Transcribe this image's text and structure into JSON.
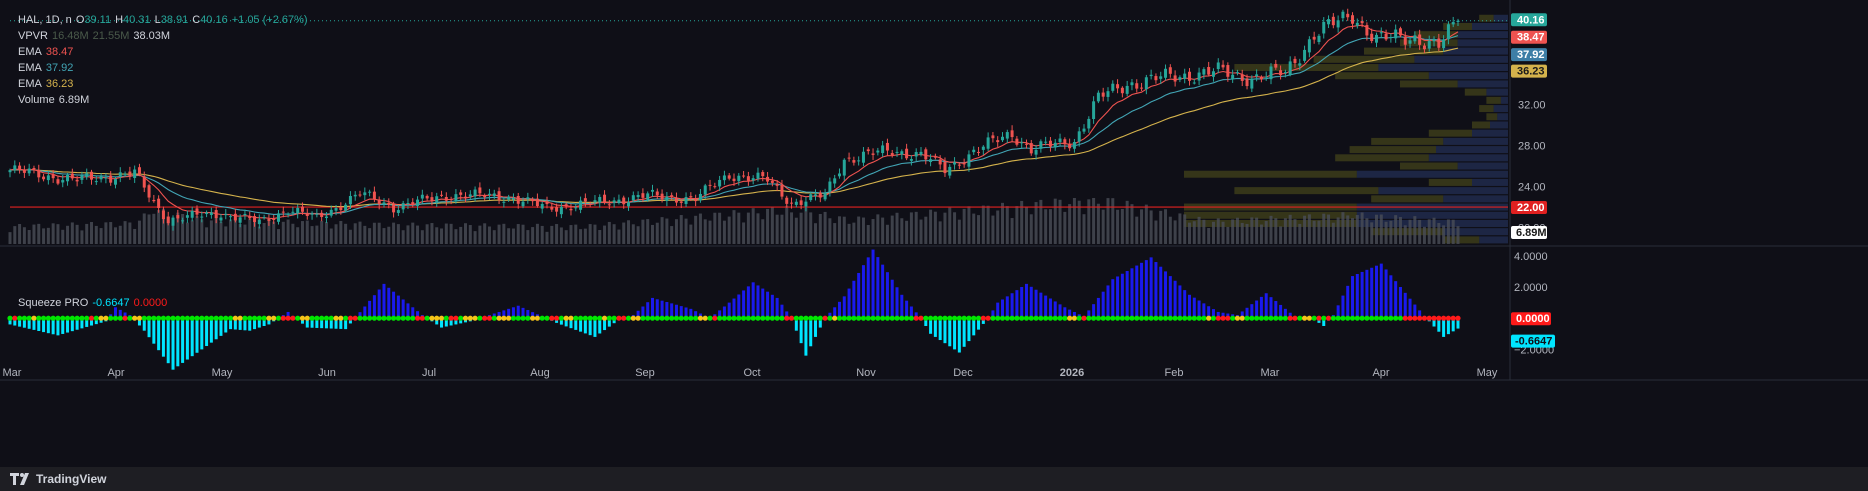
{
  "header": {
    "symbol": "HAL, 1D, n",
    "o_label": "O",
    "o": "39.11",
    "h_label": "H",
    "h": "40.31",
    "l_label": "L",
    "l": "38.91",
    "c_label": "C",
    "c": "40.16",
    "change": "+1.05 (+2.67%)"
  },
  "indicators": {
    "vpvr_label": "VPVR",
    "vpvr_a": "16.48M",
    "vpvr_b": "21.55M",
    "vpvr_c": "38.03M",
    "ema1_label": "EMA",
    "ema1": "38.47",
    "ema2_label": "EMA",
    "ema2": "37.92",
    "ema3_label": "EMA",
    "ema3": "36.23",
    "volume_label": "Volume",
    "volume": "6.89M"
  },
  "squeeze": {
    "label": "Squeeze PRO",
    "value": "-0.6647",
    "zero": "0.0000"
  },
  "footer": {
    "brand": "TradingView"
  },
  "colors": {
    "up": "#26a69a",
    "down": "#ef5350",
    "ema1": "#ef5350",
    "ema2": "#42a5b5",
    "ema3": "#d4b24c",
    "hline": "#e02020",
    "squeeze_pos": "#1a1aee",
    "squeeze_neg": "#00e5ff",
    "dot_on": "#00e600",
    "dot_off": "#ff1a1a",
    "dot_mid": "#f5c518"
  },
  "chart_data": [
    {
      "type": "candlestick",
      "title": "HAL, 1D",
      "price_ticks": [
        "32.00",
        "28.00",
        "24.00",
        "20.00"
      ],
      "price_badges": [
        "40.16",
        "38.47",
        "37.92",
        "36.23",
        "22.00"
      ],
      "volume_badge": "6.89M",
      "x_ticks": [
        "Mar",
        "Apr",
        "May",
        "Jun",
        "Jul",
        "Aug",
        "Sep",
        "Oct",
        "Nov",
        "Dec",
        "2026",
        "Feb",
        "Mar",
        "Apr",
        "May"
      ],
      "horizontal_line": 22.0,
      "ylim": [
        18.4,
        41.4
      ],
      "last_close": 40.16,
      "ema": [
        38.47,
        37.92,
        36.23
      ],
      "close_anchors": [
        {
          "i": 0,
          "v": 25.6
        },
        {
          "i": 14,
          "v": 24.6
        },
        {
          "i": 26,
          "v": 25.3
        },
        {
          "i": 30,
          "v": 22.4
        },
        {
          "i": 33,
          "v": 20.8
        },
        {
          "i": 44,
          "v": 21.4
        },
        {
          "i": 52,
          "v": 20.5
        },
        {
          "i": 58,
          "v": 21.8
        },
        {
          "i": 64,
          "v": 20.9
        },
        {
          "i": 73,
          "v": 23.3
        },
        {
          "i": 80,
          "v": 22.0
        },
        {
          "i": 92,
          "v": 23.2
        },
        {
          "i": 104,
          "v": 23.0
        },
        {
          "i": 112,
          "v": 21.9
        },
        {
          "i": 122,
          "v": 22.4
        },
        {
          "i": 133,
          "v": 23.1
        },
        {
          "i": 143,
          "v": 22.8
        },
        {
          "i": 150,
          "v": 25.2
        },
        {
          "i": 158,
          "v": 24.6
        },
        {
          "i": 163,
          "v": 22.4
        },
        {
          "i": 170,
          "v": 23.1
        },
        {
          "i": 174,
          "v": 26.7
        },
        {
          "i": 184,
          "v": 27.5
        },
        {
          "i": 190,
          "v": 27.1
        },
        {
          "i": 195,
          "v": 25.6
        },
        {
          "i": 201,
          "v": 27.4
        },
        {
          "i": 209,
          "v": 29.2
        },
        {
          "i": 213,
          "v": 27.6
        },
        {
          "i": 222,
          "v": 28.5
        },
        {
          "i": 227,
          "v": 32.6
        },
        {
          "i": 233,
          "v": 34.0
        },
        {
          "i": 242,
          "v": 34.7
        },
        {
          "i": 252,
          "v": 35.2
        },
        {
          "i": 259,
          "v": 34.6
        },
        {
          "i": 266,
          "v": 35.1
        },
        {
          "i": 272,
          "v": 38.8
        },
        {
          "i": 280,
          "v": 40.8
        },
        {
          "i": 285,
          "v": 38.3
        },
        {
          "i": 293,
          "v": 38.6
        },
        {
          "i": 298,
          "v": 37.6
        },
        {
          "i": 302,
          "v": 40.16
        }
      ],
      "volume_anchors": [
        {
          "i": 0,
          "v": 5.5
        },
        {
          "i": 26,
          "v": 6.5
        },
        {
          "i": 30,
          "v": 10.5
        },
        {
          "i": 40,
          "v": 7.5
        },
        {
          "i": 80,
          "v": 6.0
        },
        {
          "i": 120,
          "v": 5.5
        },
        {
          "i": 163,
          "v": 11.0
        },
        {
          "i": 175,
          "v": 7.5
        },
        {
          "i": 227,
          "v": 14.0
        },
        {
          "i": 250,
          "v": 7.0
        },
        {
          "i": 280,
          "v": 9.0
        },
        {
          "i": 302,
          "v": 6.89
        }
      ],
      "volume_max": 16,
      "volume_profile_levels": [
        {
          "price": 40.4,
          "up": 2.0,
          "down": 2.0
        },
        {
          "price": 39.6,
          "up": 4.0,
          "down": 5.0
        },
        {
          "price": 38.8,
          "up": 6.0,
          "down": 7.0
        },
        {
          "price": 38.0,
          "up": 8.0,
          "down": 7.0
        },
        {
          "price": 37.2,
          "up": 11.0,
          "down": 9.0
        },
        {
          "price": 36.4,
          "up": 14.0,
          "down": 13.0
        },
        {
          "price": 35.6,
          "up": 20.0,
          "down": 18.0
        },
        {
          "price": 34.8,
          "up": 13.0,
          "down": 11.0
        },
        {
          "price": 34.0,
          "up": 8.0,
          "down": 7.0
        },
        {
          "price": 33.2,
          "up": 3.0,
          "down": 3.0
        },
        {
          "price": 32.4,
          "up": 2.0,
          "down": 1.0
        },
        {
          "price": 31.6,
          "up": 2.0,
          "down": 2.0
        },
        {
          "price": 30.8,
          "up": 1.5,
          "down": 1.5
        },
        {
          "price": 30.0,
          "up": 2.5,
          "down": 2.5
        },
        {
          "price": 29.2,
          "up": 6.0,
          "down": 5.0
        },
        {
          "price": 28.4,
          "up": 10.0,
          "down": 9.0
        },
        {
          "price": 27.6,
          "up": 12.0,
          "down": 10.0
        },
        {
          "price": 26.8,
          "up": 13.0,
          "down": 11.0
        },
        {
          "price": 26.0,
          "up": 8.0,
          "down": 7.0
        },
        {
          "price": 25.2,
          "up": 24.0,
          "down": 21.0
        },
        {
          "price": 24.4,
          "up": 6.0,
          "down": 5.0
        },
        {
          "price": 23.6,
          "up": 20.0,
          "down": 18.0
        },
        {
          "price": 22.8,
          "up": 10.0,
          "down": 9.0
        },
        {
          "price": 22.0,
          "up": 24.0,
          "down": 21.0
        },
        {
          "price": 21.2,
          "up": 24.0,
          "down": 21.0
        },
        {
          "price": 20.4,
          "up": 24.0,
          "down": 21.0
        },
        {
          "price": 19.6,
          "up": 10.0,
          "down": 9.0
        },
        {
          "price": 18.8,
          "up": 5.0,
          "down": 4.0
        }
      ]
    },
    {
      "type": "histogram",
      "title": "Squeeze PRO",
      "y_ticks": [
        "4.0000",
        "2.0000",
        "−2.0000"
      ],
      "ylim": [
        -3.0,
        4.5
      ],
      "value_badges": [
        "0.0000",
        "-0.6647"
      ],
      "last_value": -0.6647,
      "anchors": [
        {
          "i": 0,
          "v": -0.4
        },
        {
          "i": 10,
          "v": -1.1
        },
        {
          "i": 20,
          "v": -0.2
        },
        {
          "i": 22,
          "v": 0.7
        },
        {
          "i": 25,
          "v": 0.2
        },
        {
          "i": 28,
          "v": -0.8
        },
        {
          "i": 34,
          "v": -3.3
        },
        {
          "i": 46,
          "v": -0.7
        },
        {
          "i": 50,
          "v": -0.8
        },
        {
          "i": 54,
          "v": -0.4
        },
        {
          "i": 58,
          "v": 0.4
        },
        {
          "i": 62,
          "v": -0.6
        },
        {
          "i": 70,
          "v": -0.7
        },
        {
          "i": 78,
          "v": 2.2
        },
        {
          "i": 86,
          "v": 0.2
        },
        {
          "i": 90,
          "v": -0.6
        },
        {
          "i": 96,
          "v": -0.2
        },
        {
          "i": 106,
          "v": 0.8
        },
        {
          "i": 114,
          "v": -0.3
        },
        {
          "i": 122,
          "v": -1.2
        },
        {
          "i": 127,
          "v": -0.1
        },
        {
          "i": 130,
          "v": 0.2
        },
        {
          "i": 134,
          "v": 1.3
        },
        {
          "i": 142,
          "v": 0.6
        },
        {
          "i": 146,
          "v": 0.0
        },
        {
          "i": 150,
          "v": 1.0
        },
        {
          "i": 155,
          "v": 2.3
        },
        {
          "i": 160,
          "v": 1.3
        },
        {
          "i": 163,
          "v": 0.0
        },
        {
          "i": 166,
          "v": -2.4
        },
        {
          "i": 170,
          "v": 0.0
        },
        {
          "i": 174,
          "v": 1.4
        },
        {
          "i": 180,
          "v": 4.4
        },
        {
          "i": 186,
          "v": 1.5
        },
        {
          "i": 190,
          "v": 0.0
        },
        {
          "i": 192,
          "v": -1.0
        },
        {
          "i": 198,
          "v": -2.2
        },
        {
          "i": 204,
          "v": 0.0
        },
        {
          "i": 206,
          "v": 1.0
        },
        {
          "i": 212,
          "v": 2.2
        },
        {
          "i": 220,
          "v": 0.7
        },
        {
          "i": 224,
          "v": 0.1
        },
        {
          "i": 230,
          "v": 2.5
        },
        {
          "i": 238,
          "v": 3.9
        },
        {
          "i": 246,
          "v": 1.5
        },
        {
          "i": 252,
          "v": 0.4
        },
        {
          "i": 256,
          "v": 0.2
        },
        {
          "i": 262,
          "v": 1.6
        },
        {
          "i": 268,
          "v": 0.1
        },
        {
          "i": 272,
          "v": -0.1
        },
        {
          "i": 274,
          "v": -0.5
        },
        {
          "i": 276,
          "v": 0.2
        },
        {
          "i": 280,
          "v": 2.7
        },
        {
          "i": 286,
          "v": 3.5
        },
        {
          "i": 294,
          "v": 0.5
        },
        {
          "i": 296,
          "v": -0.2
        },
        {
          "i": 299,
          "v": -1.2
        },
        {
          "i": 302,
          "v": -0.6647
        }
      ]
    }
  ]
}
